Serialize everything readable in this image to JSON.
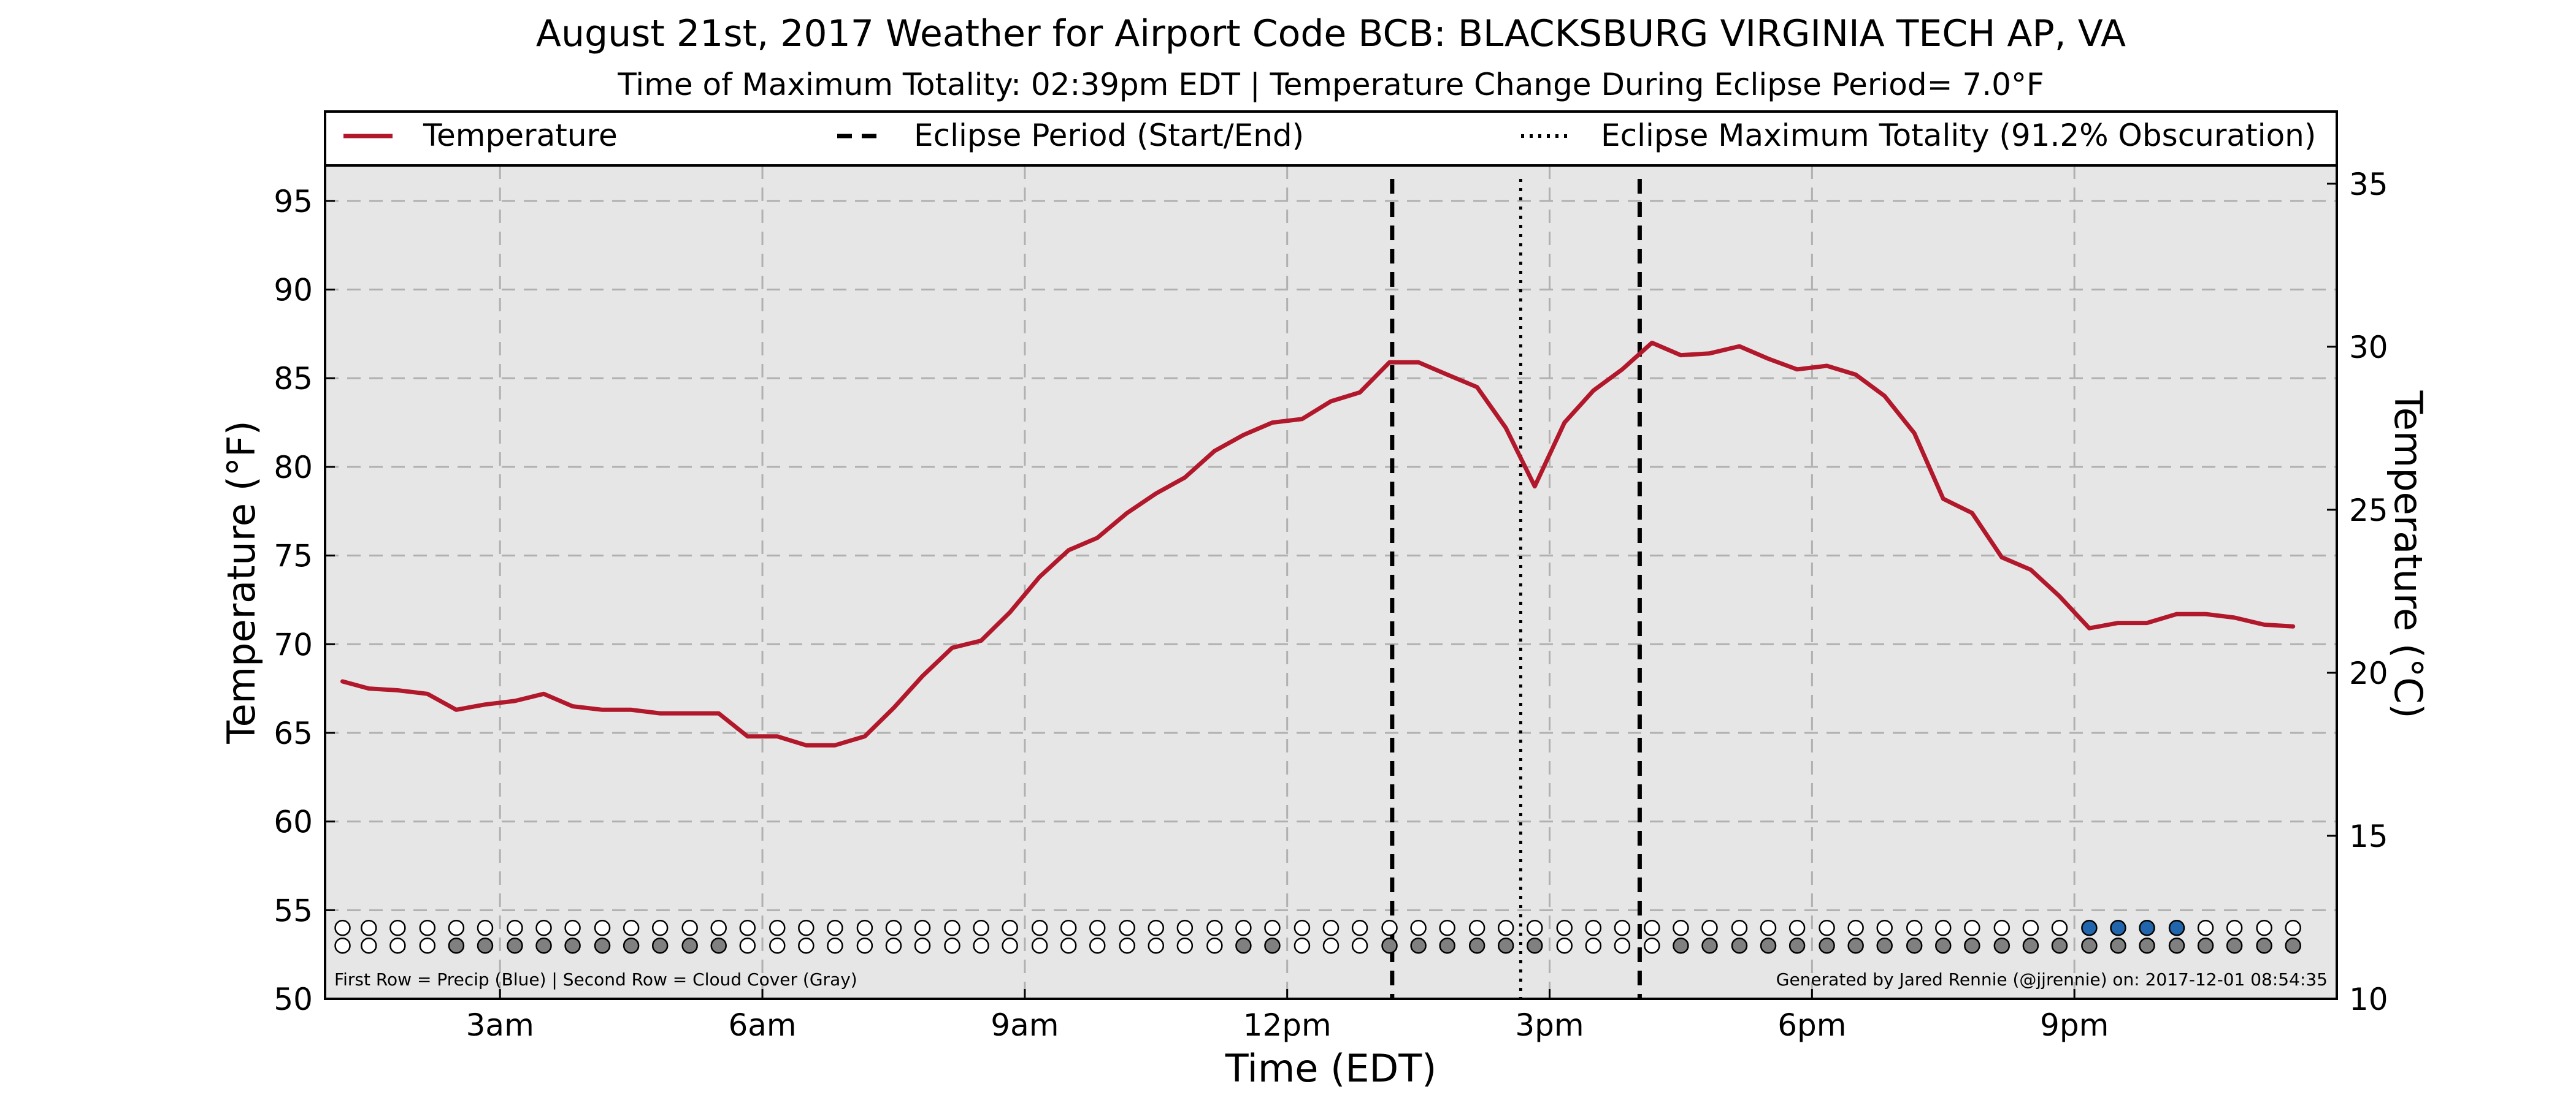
{
  "chart_data": {
    "type": "line",
    "title": "August 21st, 2017 Weather for Airport Code BCB: BLACKSBURG VIRGINIA TECH AP, VA",
    "subtitle": "Time of Maximum Totality: 02:39pm EDT | Temperature Change During Eclipse Period= 7.0°F",
    "xlabel": "Time (EDT)",
    "ylabel": "Temperature (°F)",
    "ylabel_right": "Temperature (°C)",
    "x_unit": "hours after midnight EDT",
    "xlim": [
      1,
      24
    ],
    "ylim": [
      50,
      97
    ],
    "ylim_right": [
      10,
      35.56
    ],
    "x_ticks": [
      {
        "value": 3,
        "label": "3am"
      },
      {
        "value": 6,
        "label": "6am"
      },
      {
        "value": 9,
        "label": "9am"
      },
      {
        "value": 12,
        "label": "12pm"
      },
      {
        "value": 15,
        "label": "3pm"
      },
      {
        "value": 18,
        "label": "6pm"
      },
      {
        "value": 21,
        "label": "9pm"
      }
    ],
    "y_ticks": [
      50,
      55,
      60,
      65,
      70,
      75,
      80,
      85,
      90,
      95
    ],
    "y_ticks_right": [
      10,
      15,
      20,
      25,
      30,
      35
    ],
    "grid": true,
    "legend_position": "top",
    "legend": [
      {
        "label": "Temperature",
        "style": "solid"
      },
      {
        "label": "Eclipse Period (Start/End)",
        "style": "dashed"
      },
      {
        "label": "Eclipse Maximum Totality (91.2% Obscuration)",
        "style": "dotted"
      }
    ],
    "series": [
      {
        "name": "Temperature",
        "x": [
          1.2,
          1.5,
          1.83,
          2.17,
          2.5,
          2.83,
          3.17,
          3.5,
          3.83,
          4.17,
          4.5,
          4.83,
          5.17,
          5.5,
          5.83,
          6.17,
          6.5,
          6.83,
          7.17,
          7.5,
          7.83,
          8.17,
          8.5,
          8.83,
          9.17,
          9.5,
          9.83,
          10.17,
          10.5,
          10.83,
          11.17,
          11.5,
          11.83,
          12.17,
          12.5,
          12.83,
          13.17,
          13.5,
          13.83,
          14.17,
          14.5,
          14.83,
          15.17,
          15.5,
          15.83,
          16.17,
          16.5,
          16.83,
          17.17,
          17.5,
          17.83,
          18.17,
          18.5,
          18.83,
          19.17,
          19.5,
          19.83,
          20.17,
          20.5,
          20.83,
          21.17,
          21.5,
          21.83,
          22.17,
          22.5,
          22.83,
          23.17,
          23.5
        ],
        "values": [
          67.9,
          67.5,
          67.4,
          67.2,
          66.3,
          66.6,
          66.8,
          67.2,
          66.5,
          66.3,
          66.3,
          66.1,
          66.1,
          66.1,
          64.8,
          64.8,
          64.3,
          64.3,
          64.8,
          66.4,
          68.2,
          69.8,
          70.2,
          71.8,
          73.8,
          75.3,
          76.0,
          77.4,
          78.5,
          79.4,
          80.9,
          81.8,
          82.5,
          82.7,
          83.7,
          84.2,
          85.9,
          85.9,
          85.2,
          84.5,
          82.2,
          78.9,
          82.5,
          84.3,
          85.5,
          87.0,
          86.3,
          86.4,
          86.8,
          86.1,
          85.5,
          85.7,
          85.2,
          84.0,
          81.9,
          78.2,
          77.4,
          74.9,
          74.2,
          72.7,
          70.9,
          71.2,
          71.2,
          71.7,
          71.7,
          71.5,
          71.1,
          71.0
        ],
        "color": "#b2182b"
      }
    ],
    "eclipse_start_x": 13.2,
    "eclipse_end_x": 16.03,
    "eclipse_max_x": 14.67,
    "precip_cloud_rows": {
      "x": [
        1.2,
        1.5,
        1.83,
        2.17,
        2.5,
        2.83,
        3.17,
        3.5,
        3.83,
        4.17,
        4.5,
        4.83,
        5.17,
        5.5,
        5.83,
        6.17,
        6.5,
        6.83,
        7.17,
        7.5,
        7.83,
        8.17,
        8.5,
        8.83,
        9.17,
        9.5,
        9.83,
        10.17,
        10.5,
        10.83,
        11.17,
        11.5,
        11.83,
        12.17,
        12.5,
        12.83,
        13.17,
        13.5,
        13.83,
        14.17,
        14.5,
        14.83,
        15.17,
        15.5,
        15.83,
        16.17,
        16.5,
        16.83,
        17.17,
        17.5,
        17.83,
        18.17,
        18.5,
        18.83,
        19.17,
        19.5,
        19.83,
        20.17,
        20.5,
        20.83,
        21.17,
        21.5,
        21.83,
        22.17,
        22.5,
        22.83,
        23.17,
        23.5
      ],
      "precip": [
        0,
        0,
        0,
        0,
        0,
        0,
        0,
        0,
        0,
        0,
        0,
        0,
        0,
        0,
        0,
        0,
        0,
        0,
        0,
        0,
        0,
        0,
        0,
        0,
        0,
        0,
        0,
        0,
        0,
        0,
        0,
        0,
        0,
        0,
        0,
        0,
        0,
        0,
        0,
        0,
        0,
        0,
        0,
        0,
        0,
        0,
        0,
        0,
        0,
        0,
        0,
        0,
        0,
        0,
        0,
        0,
        0,
        0,
        0,
        0,
        1,
        1,
        1,
        1,
        0,
        0,
        0,
        0
      ],
      "cloud": [
        0,
        0,
        0,
        0,
        1,
        1,
        1,
        1,
        1,
        1,
        1,
        1,
        1,
        1,
        0,
        0,
        0,
        0,
        0,
        0,
        0,
        0,
        0,
        0,
        0,
        0,
        0,
        0,
        0,
        0,
        0,
        1,
        1,
        0,
        0,
        0,
        1,
        1,
        1,
        1,
        1,
        1,
        0,
        0,
        0,
        0,
        1,
        1,
        1,
        1,
        1,
        1,
        1,
        1,
        1,
        1,
        1,
        1,
        1,
        1,
        1,
        1,
        1,
        1,
        1,
        1,
        1,
        1
      ],
      "precip_color": "#2166ac",
      "cloud_color": "#808080",
      "row_y": [
        54,
        53
      ]
    },
    "annotations": {
      "bottom_left": "First Row = Precip (Blue) | Second Row = Cloud Cover (Gray)",
      "bottom_right": "Generated by Jared Rennie (@jjrennie) on: 2017-12-01 08:54:35"
    },
    "colors": {
      "plot_background": "#e6e6e6",
      "line": "#b2182b",
      "grid": "#b0b0b0"
    }
  }
}
